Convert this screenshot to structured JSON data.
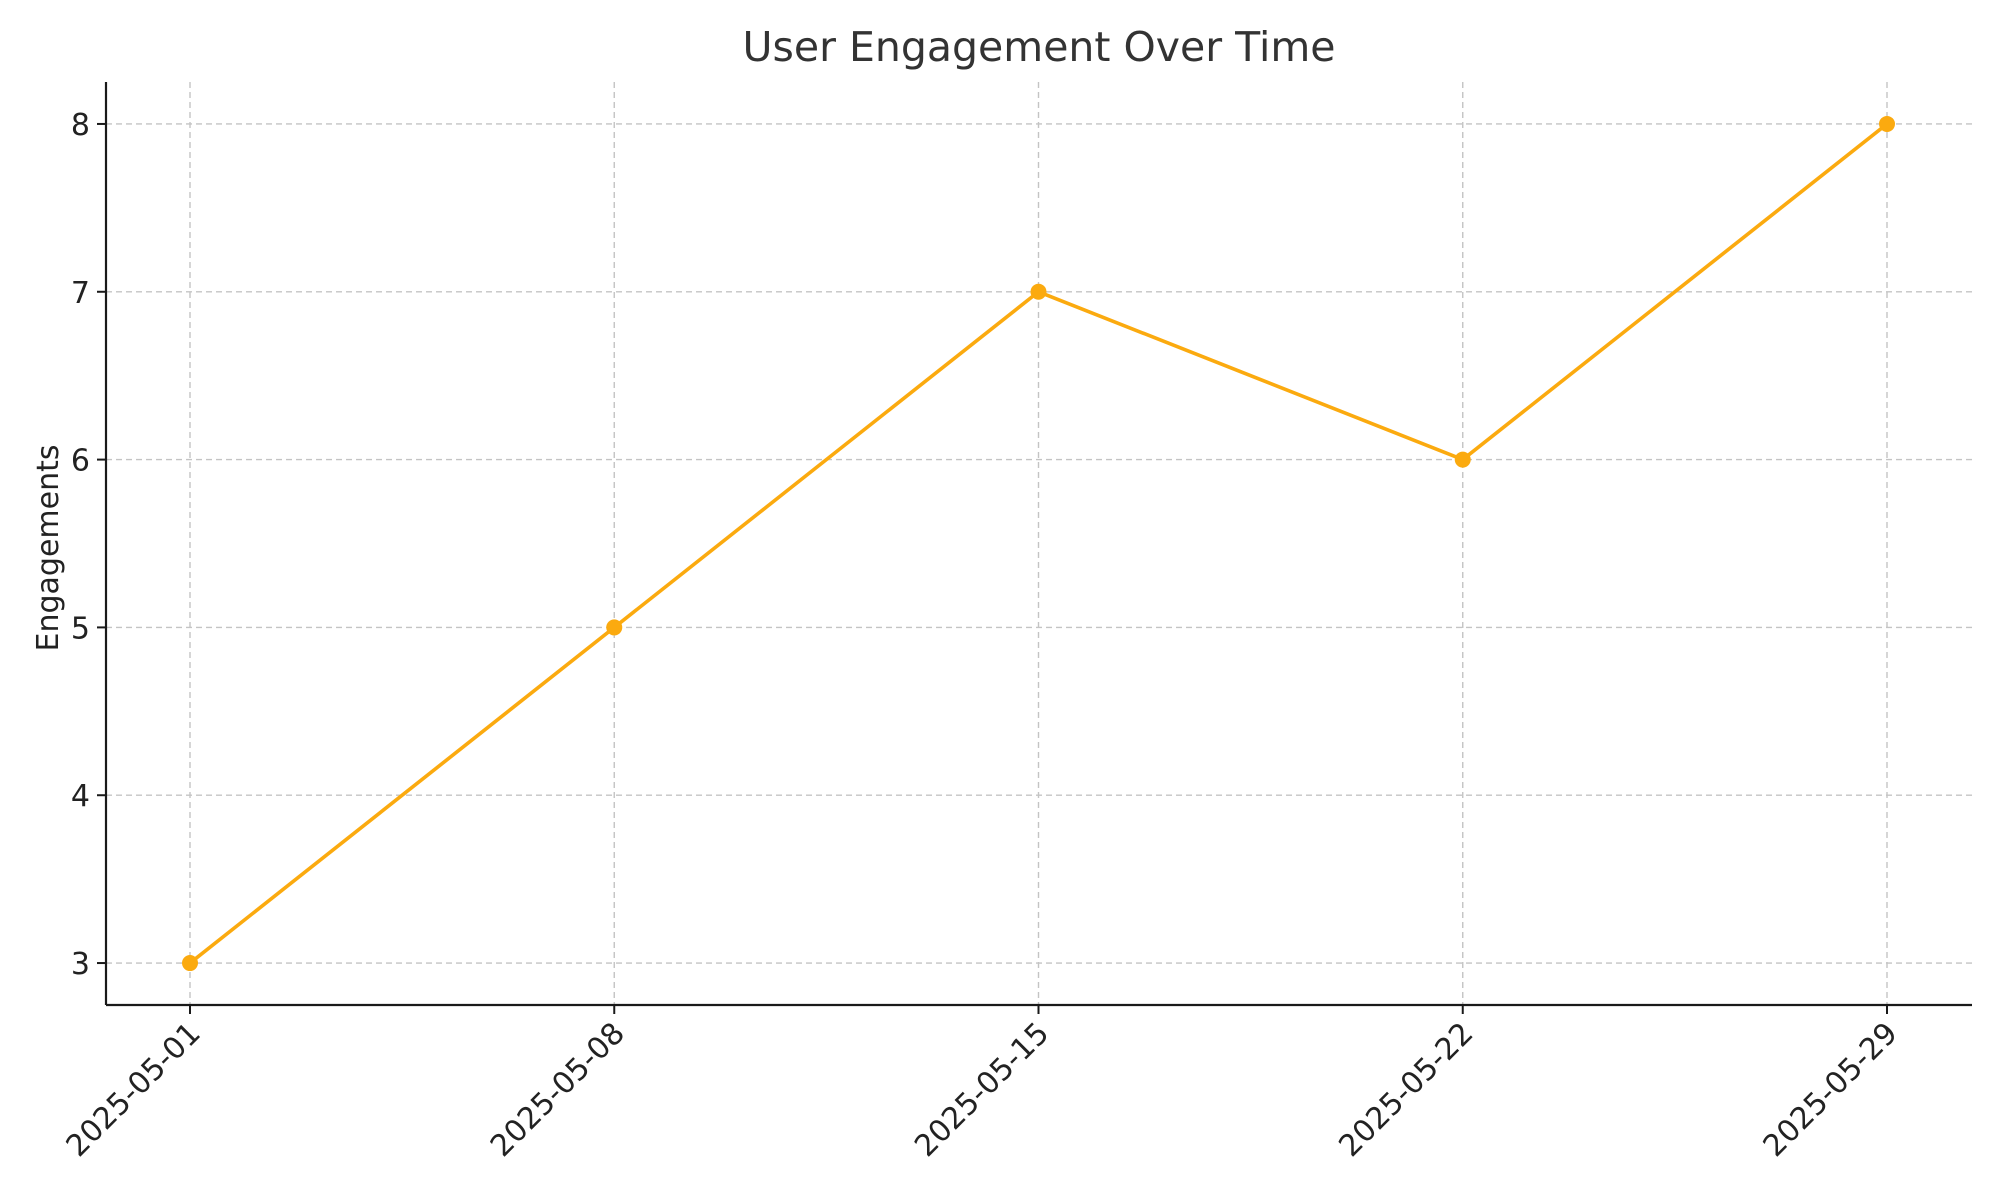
{
  "chart_data": {
    "type": "line",
    "title": "User Engagement Over Time",
    "xlabel": "",
    "ylabel": "Engagements",
    "x": [
      "2025-05-01",
      "2025-05-08",
      "2025-05-15",
      "2025-05-22",
      "2025-05-29"
    ],
    "series": [
      {
        "values": [
          3,
          5,
          7,
          6,
          8
        ],
        "color": "#FBAA0F",
        "marker": "circle"
      }
    ],
    "yticks": [
      "3",
      "4",
      "5",
      "6",
      "7",
      "8"
    ],
    "ylim": [
      2.75,
      8.25
    ],
    "grid": true,
    "grid_style": "dashed",
    "legend": "none",
    "xtick_rotation": 45
  }
}
